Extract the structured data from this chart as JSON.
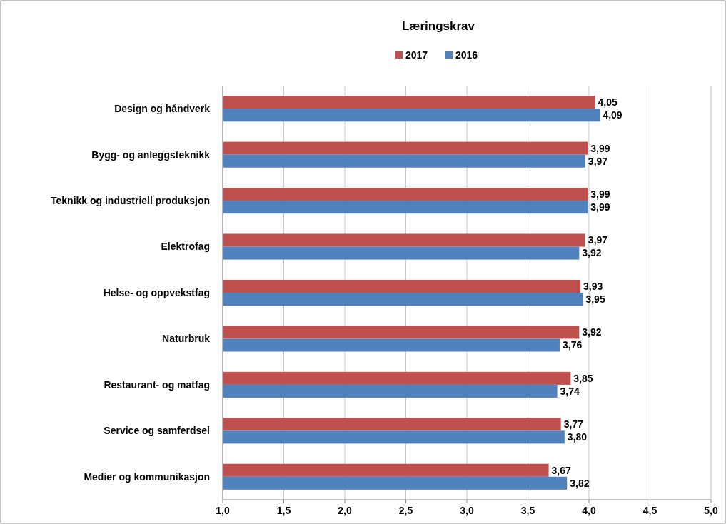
{
  "chart_data": {
    "type": "bar",
    "orientation": "horizontal",
    "title": "Læringskrav",
    "categories": [
      "Design og håndverk",
      "Bygg- og anleggsteknikk",
      "Teknikk og industriell produksjon",
      "Elektrofag",
      "Helse- og oppvekstfag",
      "Naturbruk",
      "Restaurant- og matfag",
      "Service og samferdsel",
      "Medier og kommunikasjon"
    ],
    "series": [
      {
        "name": "2017",
        "color": "#c0504d",
        "values": [
          4.05,
          3.99,
          3.99,
          3.97,
          3.93,
          3.92,
          3.85,
          3.77,
          3.67
        ],
        "value_labels": [
          "4,05",
          "3,99",
          "3,99",
          "3,97",
          "3,93",
          "3,92",
          "3,85",
          "3,77",
          "3,67"
        ]
      },
      {
        "name": "2016",
        "color": "#4f81bd",
        "values": [
          4.09,
          3.97,
          3.99,
          3.92,
          3.95,
          3.76,
          3.74,
          3.8,
          3.82
        ],
        "value_labels": [
          "4,09",
          "3,97",
          "3,99",
          "3,92",
          "3,95",
          "3,76",
          "3,74",
          "3,80",
          "3,82"
        ]
      }
    ],
    "xlim": [
      1,
      5
    ],
    "xticks": [
      {
        "value": 1,
        "label": "1,0"
      },
      {
        "value": 1.5,
        "label": "1,5"
      },
      {
        "value": 2,
        "label": "2,0"
      },
      {
        "value": 2.5,
        "label": "2,5"
      },
      {
        "value": 3,
        "label": "3,0"
      },
      {
        "value": 3.5,
        "label": "3,5"
      },
      {
        "value": 4,
        "label": "4,0"
      },
      {
        "value": 4.5,
        "label": "4,5"
      },
      {
        "value": 5,
        "label": "5,0"
      }
    ],
    "grid": "x",
    "legend": "top"
  }
}
